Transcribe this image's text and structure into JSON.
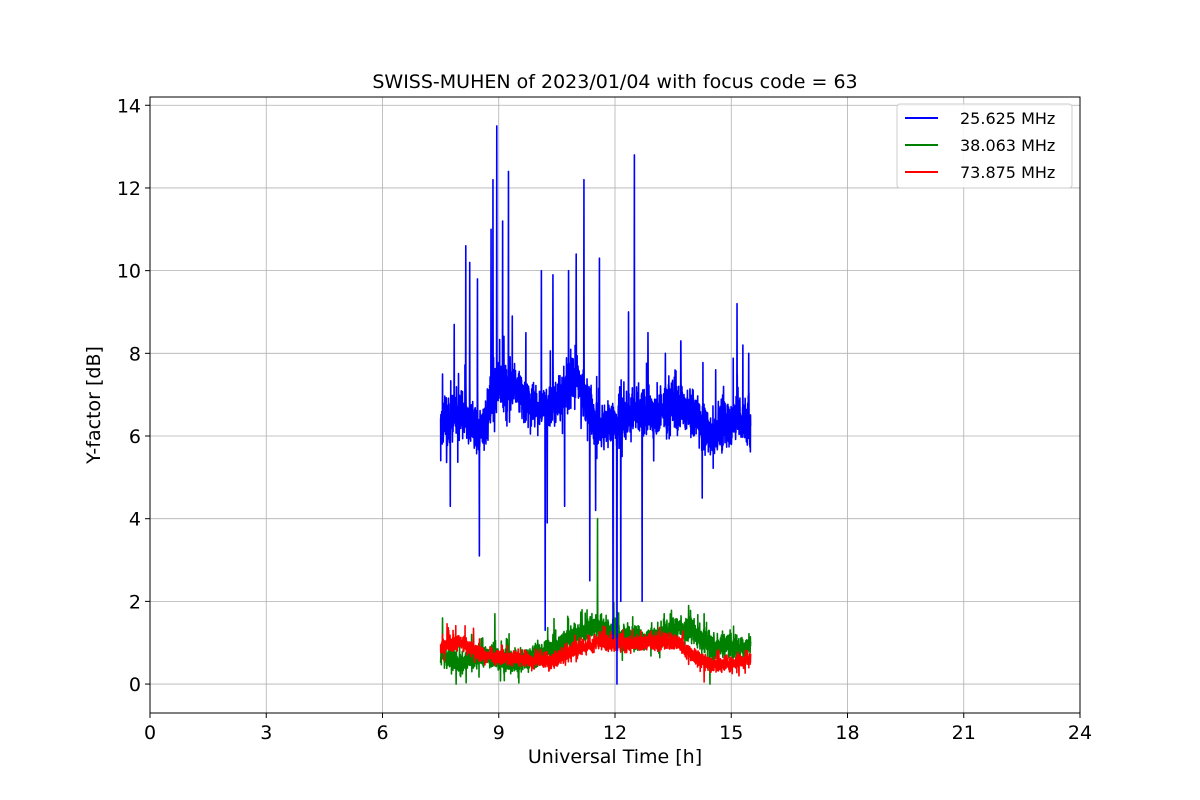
{
  "chart_data": {
    "type": "line",
    "title": "SWISS-MUHEN of 2023/01/04 with focus code = 63",
    "xlabel": "Universal Time [h]",
    "ylabel": "Y-factor [dB]",
    "xlim": [
      0,
      24
    ],
    "ylim": [
      -0.7,
      14.2
    ],
    "xticks": [
      0,
      3,
      6,
      9,
      12,
      15,
      18,
      21,
      24
    ],
    "yticks": [
      0,
      2,
      4,
      6,
      8,
      10,
      12,
      14
    ],
    "grid": true,
    "legend_position": "top-right",
    "series": [
      {
        "name": "25.625 MHz",
        "color": "#0000ff",
        "baseline": [
          [
            7.5,
            6.3
          ],
          [
            8.0,
            6.6
          ],
          [
            8.5,
            6.1
          ],
          [
            9.0,
            7.2
          ],
          [
            9.5,
            7.1
          ],
          [
            10.0,
            6.6
          ],
          [
            10.5,
            6.8
          ],
          [
            11.0,
            7.5
          ],
          [
            11.5,
            6.2
          ],
          [
            12.0,
            6.3
          ],
          [
            12.5,
            6.6
          ],
          [
            13.0,
            6.5
          ],
          [
            13.5,
            6.7
          ],
          [
            14.0,
            6.6
          ],
          [
            14.5,
            6.0
          ],
          [
            15.0,
            6.4
          ],
          [
            15.5,
            6.3
          ]
        ],
        "noise": 0.55,
        "events": [
          [
            7.55,
            7.5
          ],
          [
            7.75,
            4.3
          ],
          [
            7.85,
            8.7
          ],
          [
            8.15,
            10.6
          ],
          [
            8.25,
            10.2
          ],
          [
            8.45,
            9.8
          ],
          [
            8.5,
            3.1
          ],
          [
            8.8,
            11.0
          ],
          [
            8.85,
            12.2
          ],
          [
            8.95,
            13.5
          ],
          [
            9.1,
            11.2
          ],
          [
            9.25,
            12.4
          ],
          [
            9.35,
            8.9
          ],
          [
            9.7,
            8.5
          ],
          [
            10.1,
            10.0
          ],
          [
            10.2,
            1.3
          ],
          [
            10.25,
            3.9
          ],
          [
            10.4,
            9.9
          ],
          [
            10.7,
            4.3
          ],
          [
            10.8,
            10.0
          ],
          [
            11.0,
            10.4
          ],
          [
            11.2,
            12.2
          ],
          [
            11.35,
            2.5
          ],
          [
            11.5,
            4.2
          ],
          [
            11.6,
            10.3
          ],
          [
            11.95,
            1.1
          ],
          [
            12.05,
            0.0
          ],
          [
            12.15,
            2.0
          ],
          [
            12.35,
            9.0
          ],
          [
            12.5,
            12.8
          ],
          [
            12.7,
            2.0
          ],
          [
            12.85,
            8.5
          ],
          [
            13.0,
            5.4
          ],
          [
            13.3,
            8.0
          ],
          [
            13.7,
            8.3
          ],
          [
            14.25,
            4.5
          ],
          [
            14.6,
            7.6
          ],
          [
            14.8,
            7.2
          ],
          [
            15.15,
            9.2
          ],
          [
            15.3,
            8.2
          ],
          [
            15.45,
            8.0
          ]
        ]
      },
      {
        "name": "38.063 MHz",
        "color": "#008000",
        "baseline": [
          [
            7.5,
            0.7
          ],
          [
            8.0,
            0.5
          ],
          [
            8.5,
            0.7
          ],
          [
            9.0,
            0.6
          ],
          [
            9.5,
            0.5
          ],
          [
            10.0,
            0.7
          ],
          [
            10.5,
            0.9
          ],
          [
            11.0,
            1.2
          ],
          [
            11.5,
            1.4
          ],
          [
            12.0,
            1.2
          ],
          [
            12.5,
            1.1
          ],
          [
            13.0,
            1.1
          ],
          [
            13.5,
            1.3
          ],
          [
            14.0,
            1.3
          ],
          [
            14.5,
            0.9
          ],
          [
            15.0,
            0.9
          ],
          [
            15.5,
            0.9
          ]
        ],
        "noise": 0.28,
        "events": [
          [
            7.55,
            1.6
          ],
          [
            7.9,
            0.0
          ],
          [
            8.3,
            1.2
          ],
          [
            8.55,
            1.1
          ],
          [
            8.9,
            1.7
          ],
          [
            9.2,
            1.1
          ],
          [
            10.4,
            1.2
          ],
          [
            11.15,
            1.8
          ],
          [
            11.55,
            4.0
          ],
          [
            11.65,
            1.7
          ],
          [
            13.5,
            1.6
          ],
          [
            13.9,
            1.9
          ],
          [
            14.3,
            1.7
          ],
          [
            14.45,
            0.0
          ]
        ]
      },
      {
        "name": "73.875 MHz",
        "color": "#ff0000",
        "baseline": [
          [
            7.5,
            0.9
          ],
          [
            8.0,
            1.0
          ],
          [
            8.5,
            0.75
          ],
          [
            9.0,
            0.65
          ],
          [
            9.5,
            0.6
          ],
          [
            10.0,
            0.55
          ],
          [
            10.5,
            0.6
          ],
          [
            11.0,
            0.85
          ],
          [
            11.5,
            1.0
          ],
          [
            12.0,
            1.0
          ],
          [
            12.5,
            1.0
          ],
          [
            13.0,
            1.0
          ],
          [
            13.5,
            1.05
          ],
          [
            14.0,
            0.7
          ],
          [
            14.5,
            0.45
          ],
          [
            15.0,
            0.5
          ],
          [
            15.5,
            0.6
          ]
        ],
        "noise": 0.18,
        "events": [
          [
            8.35,
            1.35
          ],
          [
            8.45,
            0.8
          ],
          [
            9.4,
            0.55
          ],
          [
            10.3,
            0.35
          ],
          [
            11.7,
            1.4
          ],
          [
            14.3,
            0.05
          ],
          [
            15.2,
            0.2
          ]
        ]
      }
    ]
  }
}
